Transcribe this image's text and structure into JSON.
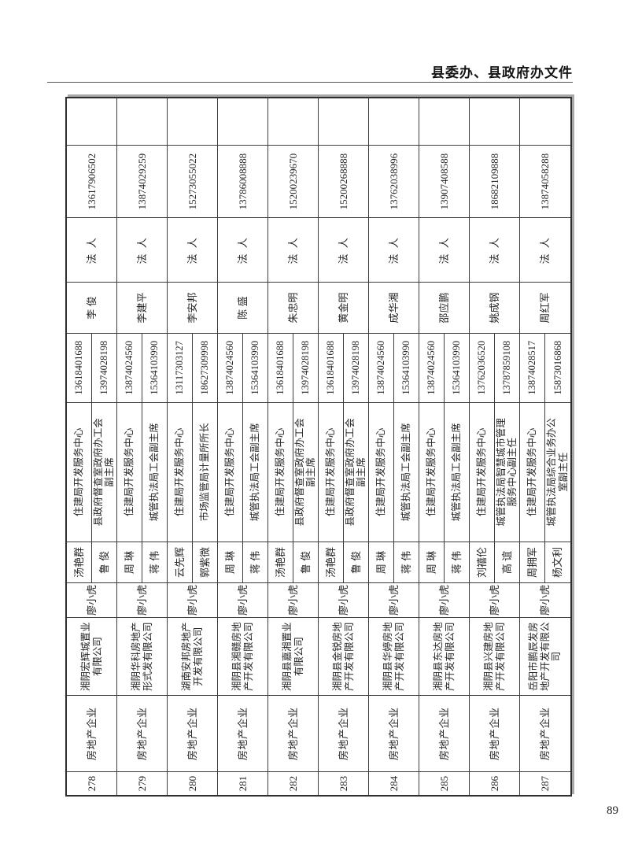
{
  "page": {
    "header_title": "县委办、县政府办文件",
    "page_number": "89"
  },
  "table": {
    "records": [
      {
        "no": "278",
        "category": "房地产企业",
        "company": "湘阴宏辉城置业有限公司",
        "leader": "廖小虎",
        "contacts": [
          {
            "name": "汤艳群",
            "title": "住建局开发服务中心",
            "phone": "13618401688"
          },
          {
            "name": "鲁 俊",
            "title": "县政府督查室政府办工会副主席",
            "phone": "13974028198"
          }
        ],
        "legal_name": "李 俊",
        "legal_role": "法 人",
        "legal_phone": "13617906502",
        "remark": ""
      },
      {
        "no": "279",
        "category": "房地产企业",
        "company": "湘阴华科房地产形式发有限公司",
        "leader": "廖小虎",
        "contacts": [
          {
            "name": "周 琳",
            "title": "住建局开发服务中心",
            "phone": "13874024560"
          },
          {
            "name": "蒋 伟",
            "title": "城管执法局工会副主席",
            "phone": "15364103990"
          }
        ],
        "legal_name": "李建平",
        "legal_role": "法 人",
        "legal_phone": "13874029259",
        "remark": ""
      },
      {
        "no": "280",
        "category": "房地产企业",
        "company": "湖南安邦房地产开发有限公司",
        "leader": "廖小虎",
        "contacts": [
          {
            "name": "云先辉",
            "title": "住建局开发服务中心",
            "phone": "13117303127"
          },
          {
            "name": "郭紫微",
            "title": "市场监管局计量所所长",
            "phone": "18627309998"
          }
        ],
        "legal_name": "李安邦",
        "legal_role": "法 人",
        "legal_phone": "15273055022",
        "remark": ""
      },
      {
        "no": "281",
        "category": "房地产企业",
        "company": "湘阴县湘赣房地产开发有限公司",
        "leader": "廖小虎",
        "contacts": [
          {
            "name": "周 琳",
            "title": "住建局开发服务中心",
            "phone": "13874024560"
          },
          {
            "name": "蒋 伟",
            "title": "城管执法局工会副主席",
            "phone": "15364103990"
          }
        ],
        "legal_name": "陈 盛",
        "legal_role": "法 人",
        "legal_phone": "13786008888",
        "remark": ""
      },
      {
        "no": "282",
        "category": "房地产企业",
        "company": "湘阴县嘉湘置业有限公司",
        "leader": "廖小虎",
        "contacts": [
          {
            "name": "汤艳群",
            "title": "住建局开发服务中心",
            "phone": "13618401688"
          },
          {
            "name": "鲁 俊",
            "title": "县政府督查室政府办工会副主席",
            "phone": "13974028198"
          }
        ],
        "legal_name": "朱忠明",
        "legal_role": "法 人",
        "legal_phone": "15200239670",
        "remark": ""
      },
      {
        "no": "283",
        "category": "房地产企业",
        "company": "湘阴县金锐房地产开发有限公司",
        "leader": "廖小虎",
        "contacts": [
          {
            "name": "汤艳群",
            "title": "住建局开发服务中心",
            "phone": "13618401688"
          },
          {
            "name": "鲁 俊",
            "title": "县政府督查室政府办工会副主席",
            "phone": "13974028198"
          }
        ],
        "legal_name": "黄金明",
        "legal_role": "法 人",
        "legal_phone": "15200268888",
        "remark": ""
      },
      {
        "no": "284",
        "category": "房地产企业",
        "company": "湘阴县华婷房地产开发有限公司",
        "leader": "廖小虎",
        "contacts": [
          {
            "name": "周 琳",
            "title": "住建局开发服务中心",
            "phone": "13874024560"
          },
          {
            "name": "蒋 伟",
            "title": "城管执法局工会副主席",
            "phone": "15364103990"
          }
        ],
        "legal_name": "成华湘",
        "legal_role": "法 人",
        "legal_phone": "13762038996",
        "remark": ""
      },
      {
        "no": "285",
        "category": "房地产企业",
        "company": "湘阴县东达房地产开发有限公司",
        "leader": "廖小虎",
        "contacts": [
          {
            "name": "周 琳",
            "title": "住建局开发服务中心",
            "phone": "13874024560"
          },
          {
            "name": "蒋 伟",
            "title": "城管执法局工会副主席",
            "phone": "15364103990"
          }
        ],
        "legal_name": "邵应鹏",
        "legal_role": "法 人",
        "legal_phone": "13907408588",
        "remark": ""
      },
      {
        "no": "286",
        "category": "房地产企业",
        "company": "湘阴县兴建房地产开发有限公司",
        "leader": "廖小虎",
        "contacts": [
          {
            "name": "刘禧伦",
            "title": "住建局开发服务中心",
            "phone": "13762036520"
          },
          {
            "name": "高 谊",
            "title": "城管执法局智慧城市管理服务中心副主任",
            "phone": "13787859108"
          }
        ],
        "legal_name": "姚成钢",
        "legal_role": "法 人",
        "legal_phone": "18682109888",
        "remark": ""
      },
      {
        "no": "287",
        "category": "房地产企业",
        "company": "岳阳市鹏辰发房地产开发有限公司",
        "leader": "廖小虎",
        "contacts": [
          {
            "name": "周拥军",
            "title": "住建局开发服务中心",
            "phone": "13874028517"
          },
          {
            "name": "杨文利",
            "title": "城管执法局综合业务办公室副主任",
            "phone": "15873016868"
          }
        ],
        "legal_name": "周红军",
        "legal_role": "法 人",
        "legal_phone": "13874058288",
        "remark": ""
      }
    ]
  }
}
